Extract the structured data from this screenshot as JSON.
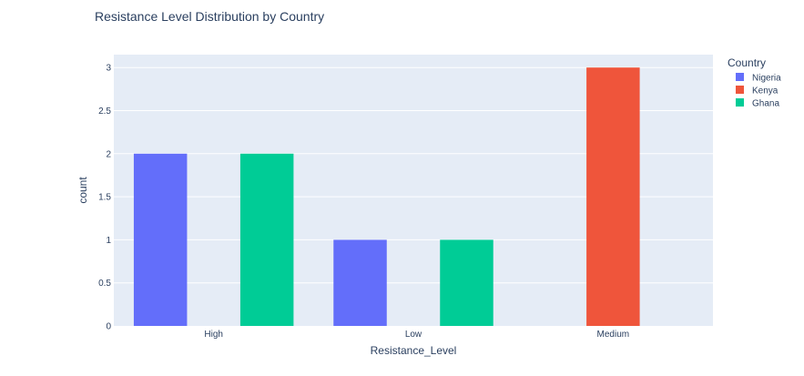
{
  "chart_data": {
    "type": "bar",
    "title": "Resistance Level Distribution by Country",
    "xlabel": "Resistance_Level",
    "ylabel": "count",
    "categories": [
      "High",
      "Low",
      "Medium"
    ],
    "series": [
      {
        "name": "Nigeria",
        "values": [
          2,
          1,
          0
        ],
        "color": "#636efa"
      },
      {
        "name": "Kenya",
        "values": [
          0,
          0,
          3
        ],
        "color": "#ef553b"
      },
      {
        "name": "Ghana",
        "values": [
          2,
          1,
          0
        ],
        "color": "#00cc96"
      }
    ],
    "ylim": [
      0,
      3.15
    ],
    "yticks": [
      "0",
      "0.5",
      "1",
      "1.5",
      "2",
      "2.5",
      "3"
    ],
    "legend": {
      "title": "Country",
      "position": "top-right"
    },
    "grid": true,
    "colors": {
      "plot_background": "#e5ecf6",
      "grid": "#ffffff",
      "text": "#2a3f5f"
    }
  }
}
